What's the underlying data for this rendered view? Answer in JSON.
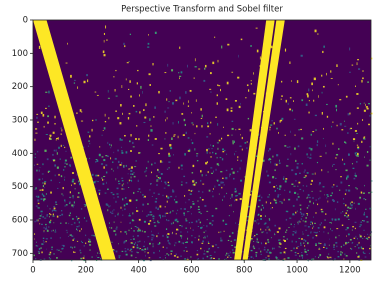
{
  "chart_data": {
    "type": "image",
    "title": "Perspective Transform and Sobel filter",
    "xlim": [
      0,
      1280
    ],
    "ylim": [
      720,
      0
    ],
    "xticks": [
      0,
      200,
      400,
      600,
      800,
      1000,
      1200
    ],
    "yticks": [
      0,
      100,
      200,
      300,
      400,
      500,
      600,
      700
    ]
  }
}
